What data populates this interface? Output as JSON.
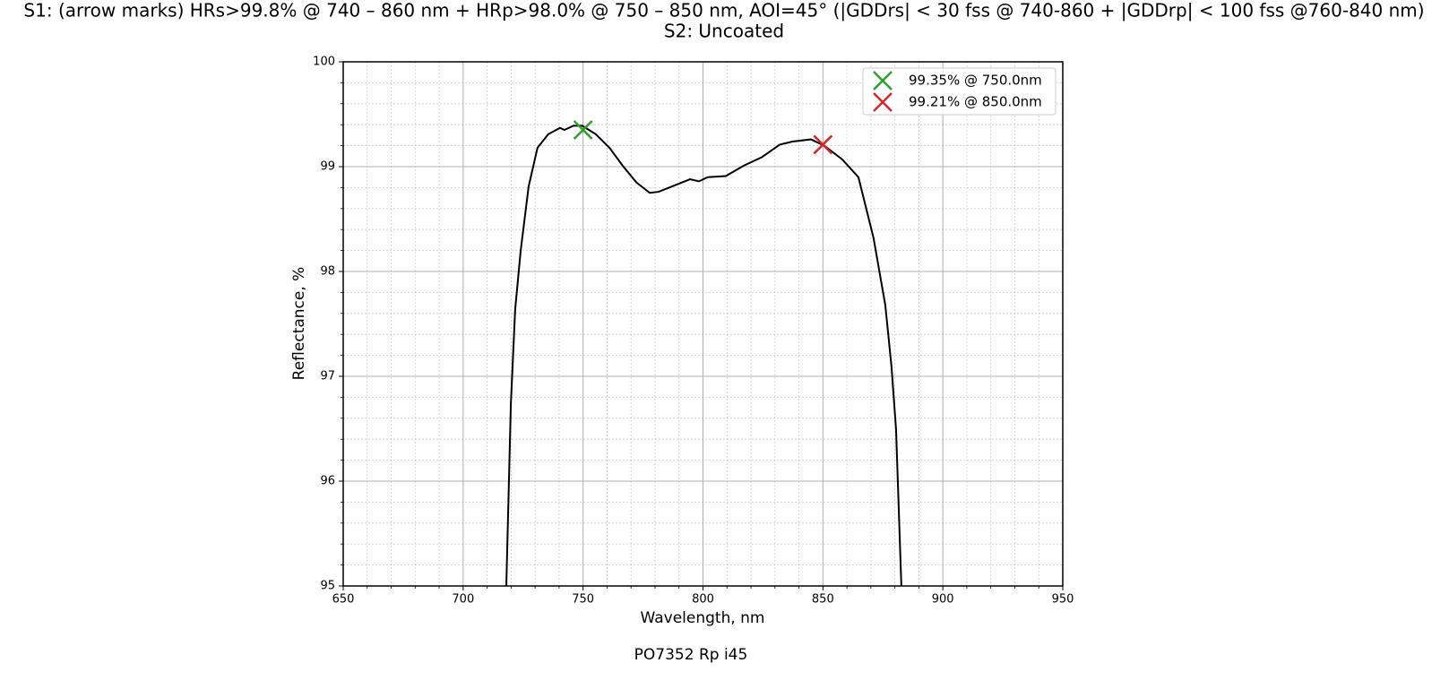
{
  "chart_data": {
    "type": "line",
    "title": "S1: (arrow marks) HRs>99.8% @ 740 – 860 nm + HRp>98.0% @ 750 – 850 nm, AOI=45° (|GDDrs| < 30 fss @ 740-860 + |GDDrp| < 100 fss @760-840 nm)",
    "subtitle": "S2: Uncoated",
    "xlabel": "Wavelength, nm",
    "ylabel": "Reflectance, %",
    "footer": "PO7352 Rp i45",
    "x": [
      718,
      719.9,
      721.7,
      724,
      727.3,
      731,
      735.5,
      740.4,
      742.2,
      746,
      749.7,
      755.3,
      761,
      766.5,
      772.2,
      777.8,
      781.5,
      787,
      794.6,
      798.3,
      802,
      809.5,
      817,
      824.5,
      832,
      837.5,
      845,
      850.6,
      858,
      864.8,
      871.1,
      876,
      878.6,
      880.5,
      882.7
    ],
    "series": [
      {
        "color": "#000000",
        "values": [
          95.0,
          96.74,
          97.64,
          98.2,
          98.81,
          99.18,
          99.31,
          99.37,
          99.35,
          99.39,
          99.39,
          99.31,
          99.18,
          99.01,
          98.85,
          98.75,
          98.76,
          98.81,
          98.88,
          98.86,
          98.9,
          98.91,
          99.01,
          99.09,
          99.21,
          99.24,
          99.26,
          99.2,
          99.07,
          98.9,
          98.32,
          97.68,
          97.09,
          96.49,
          95.0
        ]
      }
    ],
    "markers": [
      {
        "name": "99.35% @ 750.0nm",
        "color": "#2ca02c",
        "x": 750,
        "y": 99.35
      },
      {
        "name": "99.21% @ 850.0nm",
        "color": "#d62728",
        "x": 850,
        "y": 99.21
      }
    ],
    "xlim": [
      650,
      950
    ],
    "xticks": [
      650,
      700,
      750,
      800,
      850,
      900,
      950
    ],
    "ylim": [
      95,
      100
    ],
    "yticks": [
      95,
      96,
      97,
      98,
      99,
      100
    ],
    "grid": true,
    "minor_grid": true,
    "legend": "upper right"
  }
}
